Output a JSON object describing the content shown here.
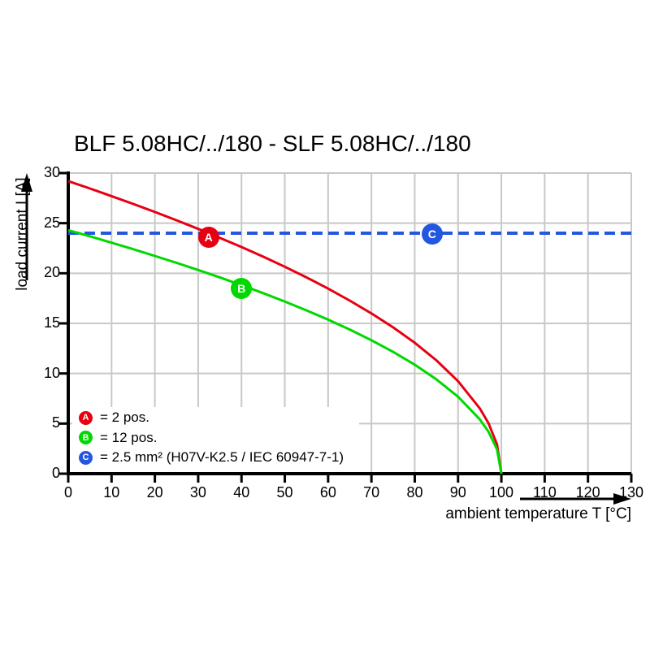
{
  "chart_data": {
    "type": "line",
    "title": "BLF 5.08HC/../180 - SLF 5.08HC/../180",
    "xlabel": "ambient temperature T [°C]",
    "ylabel": "load current I [A]",
    "xlim": [
      0,
      130
    ],
    "ylim": [
      0,
      30
    ],
    "x_ticks": [
      0,
      10,
      20,
      30,
      40,
      50,
      60,
      70,
      80,
      90,
      100,
      110,
      120,
      130
    ],
    "y_ticks": [
      0,
      5,
      10,
      15,
      20,
      25,
      30
    ],
    "grid": true,
    "legend_position": "inside-bottom-left",
    "series": [
      {
        "name": "2 pos.",
        "marker": "A",
        "color": "#e60012",
        "style": "solid",
        "points": [
          [
            0,
            29.2
          ],
          [
            5,
            28.46
          ],
          [
            10,
            27.7
          ],
          [
            15,
            26.92
          ],
          [
            20,
            26.12
          ],
          [
            25,
            25.29
          ],
          [
            30,
            24.43
          ],
          [
            35,
            23.54
          ],
          [
            40,
            22.62
          ],
          [
            45,
            21.66
          ],
          [
            50,
            20.65
          ],
          [
            55,
            19.59
          ],
          [
            60,
            18.47
          ],
          [
            65,
            17.27
          ],
          [
            70,
            15.99
          ],
          [
            75,
            14.6
          ],
          [
            80,
            13.06
          ],
          [
            85,
            11.31
          ],
          [
            90,
            9.23
          ],
          [
            95,
            6.53
          ],
          [
            97,
            5.06
          ],
          [
            99,
            2.92
          ],
          [
            100,
            0
          ]
        ]
      },
      {
        "name": "12 pos.",
        "marker": "B",
        "color": "#00d800",
        "style": "solid",
        "points": [
          [
            0,
            24.3
          ],
          [
            5,
            23.69
          ],
          [
            10,
            23.05
          ],
          [
            15,
            22.4
          ],
          [
            20,
            21.73
          ],
          [
            25,
            21.04
          ],
          [
            30,
            20.33
          ],
          [
            35,
            19.59
          ],
          [
            40,
            18.82
          ],
          [
            45,
            18.02
          ],
          [
            50,
            17.18
          ],
          [
            55,
            16.3
          ],
          [
            60,
            15.37
          ],
          [
            65,
            14.38
          ],
          [
            70,
            13.31
          ],
          [
            75,
            12.15
          ],
          [
            80,
            10.87
          ],
          [
            85,
            9.41
          ],
          [
            90,
            7.68
          ],
          [
            95,
            5.43
          ],
          [
            97,
            4.21
          ],
          [
            99,
            2.43
          ],
          [
            100,
            0
          ]
        ]
      },
      {
        "name": "2.5 mm² (H07V-K2.5 / IEC 60947-7-1)",
        "marker": "C",
        "color": "#2457e0",
        "style": "dashed",
        "points": [
          [
            0,
            24
          ],
          [
            130,
            24
          ]
        ]
      }
    ],
    "point_markers": [
      {
        "label": "A",
        "t": 32.4,
        "i": 23.6,
        "color": "#e60012"
      },
      {
        "label": "B",
        "t": 40,
        "i": 18.5,
        "color": "#00d800"
      },
      {
        "label": "C",
        "t": 84,
        "i": 23.9,
        "color": "#2457e0"
      }
    ],
    "legend": [
      {
        "letter": "A",
        "color": "#e60012",
        "text": "= 2 pos."
      },
      {
        "letter": "B",
        "color": "#00d800",
        "text": "= 12 pos."
      },
      {
        "letter": "C",
        "color": "#2457e0",
        "text": "= 2.5 mm² (H07V-K2.5 / IEC 60947-7-1)"
      }
    ]
  },
  "colors": {
    "background": "#ffffff",
    "grid": "#c8c8c8",
    "axis": "#000000"
  }
}
